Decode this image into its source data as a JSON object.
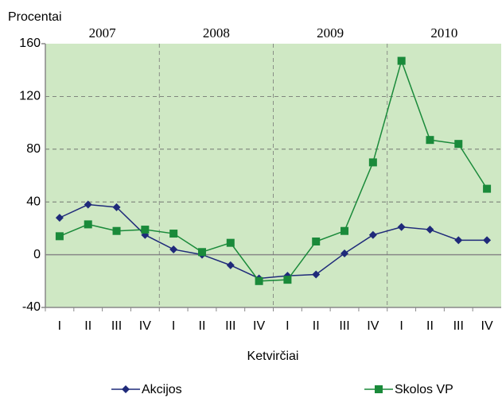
{
  "chart_data": {
    "type": "line",
    "y_axis_label": "Procentai",
    "x_axis_label": "Ketvirčiai",
    "year_groups": [
      "2007",
      "2008",
      "2009",
      "2010"
    ],
    "categories": [
      "I",
      "II",
      "III",
      "IV",
      "I",
      "II",
      "III",
      "IV",
      "I",
      "II",
      "III",
      "IV",
      "I",
      "II",
      "III",
      "IV"
    ],
    "series": [
      {
        "name": "Akcijos",
        "color": "#1f2a7a",
        "marker": "diamond",
        "values": [
          28,
          38,
          36,
          15,
          4,
          0,
          -8,
          -18,
          -16,
          -15,
          1,
          15,
          21,
          19,
          11,
          11
        ]
      },
      {
        "name": "Skolos VP",
        "color": "#1a8a3a",
        "marker": "square",
        "values": [
          14,
          23,
          18,
          19,
          16,
          2,
          9,
          -20,
          -19,
          10,
          18,
          70,
          147,
          87,
          84,
          50
        ]
      }
    ],
    "ylim": [
      -40,
      160
    ],
    "yticks": [
      -40,
      0,
      40,
      80,
      120,
      160
    ],
    "grid": true,
    "legend": "bottom"
  }
}
